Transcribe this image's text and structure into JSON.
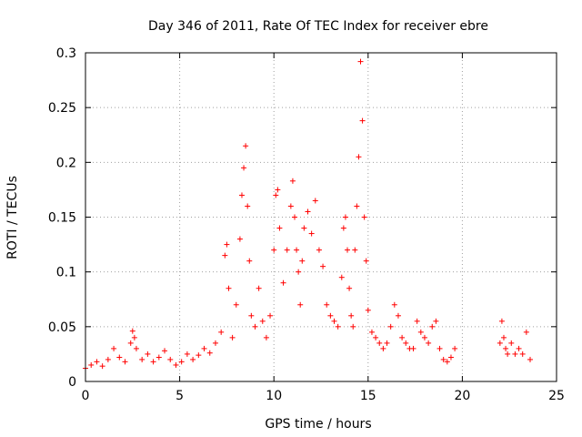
{
  "chart_data": {
    "type": "scatter",
    "title": "Day 346 of 2011, Rate Of TEC Index for receiver ebre",
    "xlabel": "GPS time / hours",
    "ylabel": "ROTI / TECUs",
    "xlim": [
      0,
      25
    ],
    "ylim": [
      0,
      0.3
    ],
    "grid": true,
    "marker": "+",
    "color": "#ff0000",
    "x_ticks": [
      "0",
      "5",
      "10",
      "15",
      "20",
      "25"
    ],
    "y_ticks": [
      "0",
      "0.05",
      "0.1",
      "0.15",
      "0.2",
      "0.25",
      "0.3"
    ],
    "series": [
      {
        "name": "ebre",
        "x": [
          0.0,
          0.3,
          0.6,
          0.9,
          1.2,
          1.5,
          1.8,
          2.1,
          2.4,
          2.5,
          2.6,
          2.7,
          3.0,
          3.3,
          3.6,
          3.9,
          4.2,
          4.5,
          4.8,
          5.1,
          5.4,
          5.7,
          6.0,
          6.3,
          6.6,
          6.9,
          7.2,
          7.4,
          7.5,
          7.6,
          7.8,
          8.0,
          8.2,
          8.3,
          8.4,
          8.5,
          8.6,
          8.7,
          8.8,
          9.0,
          9.2,
          9.4,
          9.6,
          9.8,
          10.0,
          10.1,
          10.2,
          10.3,
          10.5,
          10.7,
          10.9,
          11.0,
          11.1,
          11.2,
          11.3,
          11.4,
          11.5,
          11.6,
          11.8,
          12.0,
          12.2,
          12.4,
          12.6,
          12.8,
          13.0,
          13.2,
          13.4,
          13.6,
          13.7,
          13.8,
          13.9,
          14.0,
          14.1,
          14.2,
          14.3,
          14.4,
          14.5,
          14.6,
          14.7,
          14.8,
          14.9,
          15.0,
          15.2,
          15.4,
          15.6,
          15.8,
          16.0,
          16.2,
          16.4,
          16.6,
          16.8,
          17.0,
          17.2,
          17.4,
          17.6,
          17.8,
          18.0,
          18.2,
          18.4,
          18.6,
          18.8,
          19.0,
          19.2,
          19.4,
          19.6,
          22.0,
          22.1,
          22.2,
          22.3,
          22.4,
          22.6,
          22.8,
          23.0,
          23.2,
          23.4,
          23.6
        ],
        "y": [
          0.012,
          0.015,
          0.018,
          0.014,
          0.02,
          0.03,
          0.022,
          0.018,
          0.035,
          0.046,
          0.04,
          0.03,
          0.02,
          0.025,
          0.018,
          0.022,
          0.028,
          0.02,
          0.015,
          0.018,
          0.025,
          0.02,
          0.024,
          0.03,
          0.026,
          0.035,
          0.045,
          0.115,
          0.125,
          0.085,
          0.04,
          0.07,
          0.13,
          0.17,
          0.195,
          0.215,
          0.16,
          0.11,
          0.06,
          0.05,
          0.085,
          0.055,
          0.04,
          0.06,
          0.12,
          0.17,
          0.175,
          0.14,
          0.09,
          0.12,
          0.16,
          0.183,
          0.15,
          0.12,
          0.1,
          0.07,
          0.11,
          0.14,
          0.155,
          0.135,
          0.165,
          0.12,
          0.105,
          0.07,
          0.06,
          0.055,
          0.05,
          0.095,
          0.14,
          0.15,
          0.12,
          0.085,
          0.06,
          0.05,
          0.12,
          0.16,
          0.205,
          0.292,
          0.238,
          0.15,
          0.11,
          0.065,
          0.045,
          0.04,
          0.035,
          0.03,
          0.035,
          0.05,
          0.07,
          0.06,
          0.04,
          0.035,
          0.03,
          0.03,
          0.055,
          0.045,
          0.04,
          0.035,
          0.05,
          0.055,
          0.03,
          0.02,
          0.018,
          0.022,
          0.03,
          0.035,
          0.055,
          0.04,
          0.03,
          0.025,
          0.035,
          0.025,
          0.03,
          0.025,
          0.045,
          0.02
        ]
      }
    ]
  }
}
